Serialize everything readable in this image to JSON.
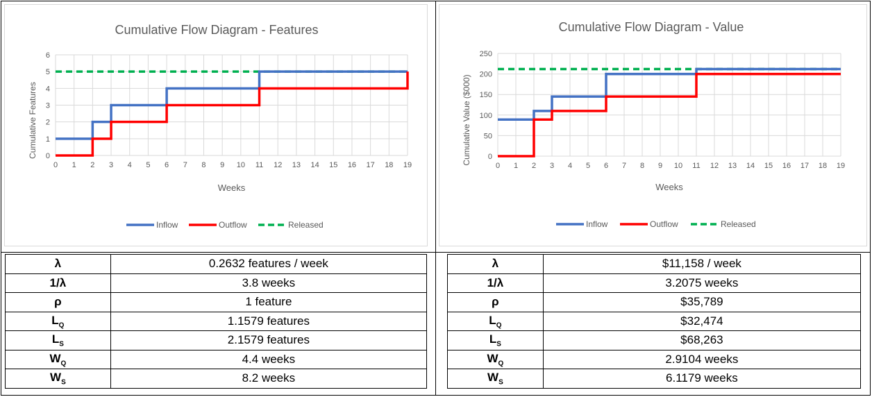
{
  "chart_data": [
    {
      "type": "line",
      "step": true,
      "title": "Cumulative Flow Diagram - Features",
      "xlabel": "Weeks",
      "ylabel": "Cumulative Features",
      "xlim": [
        0,
        19
      ],
      "ylim": [
        0,
        6
      ],
      "x_ticks": [
        "0",
        "1",
        "2",
        "3",
        "4",
        "5",
        "6",
        "7",
        "8",
        "9",
        "10",
        "11",
        "12",
        "13",
        "14",
        "15",
        "16",
        "17",
        "18",
        "19"
      ],
      "y_ticks": [
        "0",
        "1",
        "2",
        "3",
        "4",
        "5",
        "6"
      ],
      "grid": true,
      "legend_position": "bottom",
      "series": [
        {
          "name": "Inflow",
          "color": "#4472c4",
          "dash": false,
          "x": [
            0,
            2,
            3,
            6,
            11,
            19
          ],
          "y": [
            1,
            2,
            3,
            4,
            5,
            5
          ]
        },
        {
          "name": "Outflow",
          "color": "#ff0000",
          "dash": false,
          "x": [
            0,
            2,
            3,
            6,
            11,
            19
          ],
          "y": [
            0,
            1,
            2,
            3,
            4,
            5
          ]
        },
        {
          "name": "Released",
          "color": "#00b050",
          "dash": true,
          "x": [
            0,
            19
          ],
          "y": [
            5,
            5
          ]
        }
      ]
    },
    {
      "type": "line",
      "step": true,
      "title": "Cumulative Flow Diagram - Value",
      "xlabel": "Weeks",
      "ylabel": "Cumulative Value ($000)",
      "xlim": [
        0,
        19
      ],
      "ylim": [
        0,
        250
      ],
      "x_ticks": [
        "0",
        "1",
        "2",
        "3",
        "4",
        "5",
        "6",
        "7",
        "8",
        "9",
        "10",
        "11",
        "12",
        "13",
        "14",
        "15",
        "16",
        "17",
        "18",
        "19"
      ],
      "y_ticks": [
        "0",
        "50",
        "100",
        "150",
        "200",
        "250"
      ],
      "grid": true,
      "legend_position": "bottom",
      "series": [
        {
          "name": "Inflow",
          "color": "#4472c4",
          "dash": false,
          "x": [
            0,
            2,
            3,
            6,
            11,
            19
          ],
          "y": [
            89,
            110,
            145,
            200,
            212,
            212
          ]
        },
        {
          "name": "Outflow",
          "color": "#ff0000",
          "dash": false,
          "x": [
            0,
            2,
            3,
            6,
            11,
            19
          ],
          "y": [
            0,
            89,
            110,
            145,
            200,
            200
          ]
        },
        {
          "name": "Released",
          "color": "#00b050",
          "dash": true,
          "x": [
            0,
            19
          ],
          "y": [
            212,
            212
          ]
        }
      ]
    }
  ],
  "tables": [
    {
      "rows": [
        {
          "symbol": "λ",
          "sub": "",
          "value": "0.2632 features / week"
        },
        {
          "symbol": "1/λ",
          "sub": "",
          "value": "3.8 weeks"
        },
        {
          "symbol": "ρ",
          "sub": "",
          "value": "1 feature"
        },
        {
          "symbol": "L",
          "sub": "Q",
          "value": "1.1579 features"
        },
        {
          "symbol": "L",
          "sub": "S",
          "value": "2.1579 features"
        },
        {
          "symbol": "W",
          "sub": "Q",
          "value": "4.4 weeks"
        },
        {
          "symbol": "W",
          "sub": "S",
          "value": "8.2 weeks"
        }
      ]
    },
    {
      "rows": [
        {
          "symbol": "λ",
          "sub": "",
          "value": "$11,158 / week"
        },
        {
          "symbol": "1/λ",
          "sub": "",
          "value": "3.2075 weeks"
        },
        {
          "symbol": "ρ",
          "sub": "",
          "value": "$35,789"
        },
        {
          "symbol": "L",
          "sub": "Q",
          "value": "$32,474"
        },
        {
          "symbol": "L",
          "sub": "S",
          "value": "$68,263"
        },
        {
          "symbol": "W",
          "sub": "Q",
          "value": "2.9104 weeks"
        },
        {
          "symbol": "W",
          "sub": "S",
          "value": "6.1179 weeks"
        }
      ]
    }
  ]
}
